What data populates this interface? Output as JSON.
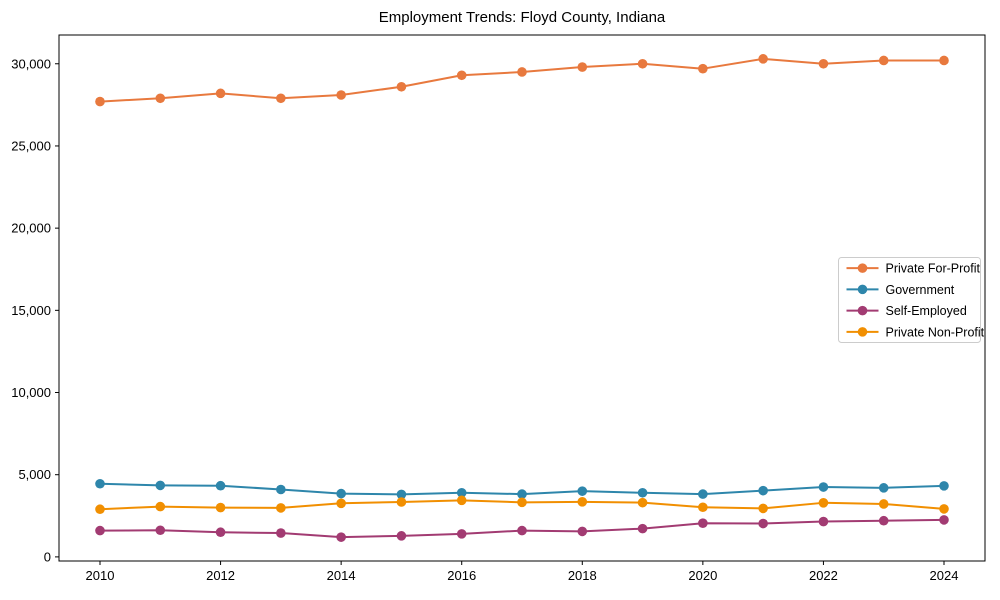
{
  "figure": {
    "title": "Employment Trends: Floyd County, Indiana"
  },
  "chart_data": {
    "type": "line",
    "title": "Employment Trends: Floyd County, Indiana",
    "xlabel": "",
    "ylabel": "",
    "grid": false,
    "legend_position": "center right",
    "marker": "circle",
    "background_color": "#ffffff",
    "axis_color": "#000000",
    "legend_border_color": "#cccccc",
    "x": [
      2010,
      2011,
      2012,
      2013,
      2014,
      2015,
      2016,
      2017,
      2018,
      2019,
      2020,
      2021,
      2022,
      2023,
      2024
    ],
    "xlim": [
      2009.32,
      2024.68
    ],
    "ylim": [
      -250,
      31750
    ],
    "xtick_values": [
      2010,
      2012,
      2014,
      2016,
      2018,
      2020,
      2022,
      2024
    ],
    "xtick_labels": [
      "2010",
      "2012",
      "2014",
      "2016",
      "2018",
      "2020",
      "2022",
      "2024"
    ],
    "ytick_values": [
      0,
      5000,
      10000,
      15000,
      20000,
      25000,
      30000
    ],
    "ytick_labels": [
      "0",
      "5,000",
      "10,000",
      "15,000",
      "20,000",
      "25,000",
      "30,000"
    ],
    "series": [
      {
        "name": "Private For-Profit",
        "color": "#E8793E",
        "values": [
          27700,
          27900,
          28200,
          27900,
          28100,
          28600,
          29300,
          29500,
          29800,
          30000,
          29700,
          30300,
          30000,
          30200,
          30200
        ]
      },
      {
        "name": "Government",
        "color": "#2E86AB",
        "values": [
          4450,
          4350,
          4330,
          4100,
          3850,
          3800,
          3900,
          3820,
          4000,
          3900,
          3820,
          4030,
          4250,
          4200,
          4320
        ]
      },
      {
        "name": "Self-Employed",
        "color": "#A23B72",
        "values": [
          1600,
          1620,
          1500,
          1450,
          1200,
          1280,
          1400,
          1600,
          1550,
          1720,
          2050,
          2030,
          2150,
          2200,
          2250
        ]
      },
      {
        "name": "Private Non-Profit",
        "color": "#F18F01",
        "values": [
          2900,
          3060,
          3000,
          2980,
          3260,
          3340,
          3440,
          3320,
          3350,
          3300,
          3020,
          2950,
          3290,
          3220,
          2920
        ]
      }
    ]
  }
}
